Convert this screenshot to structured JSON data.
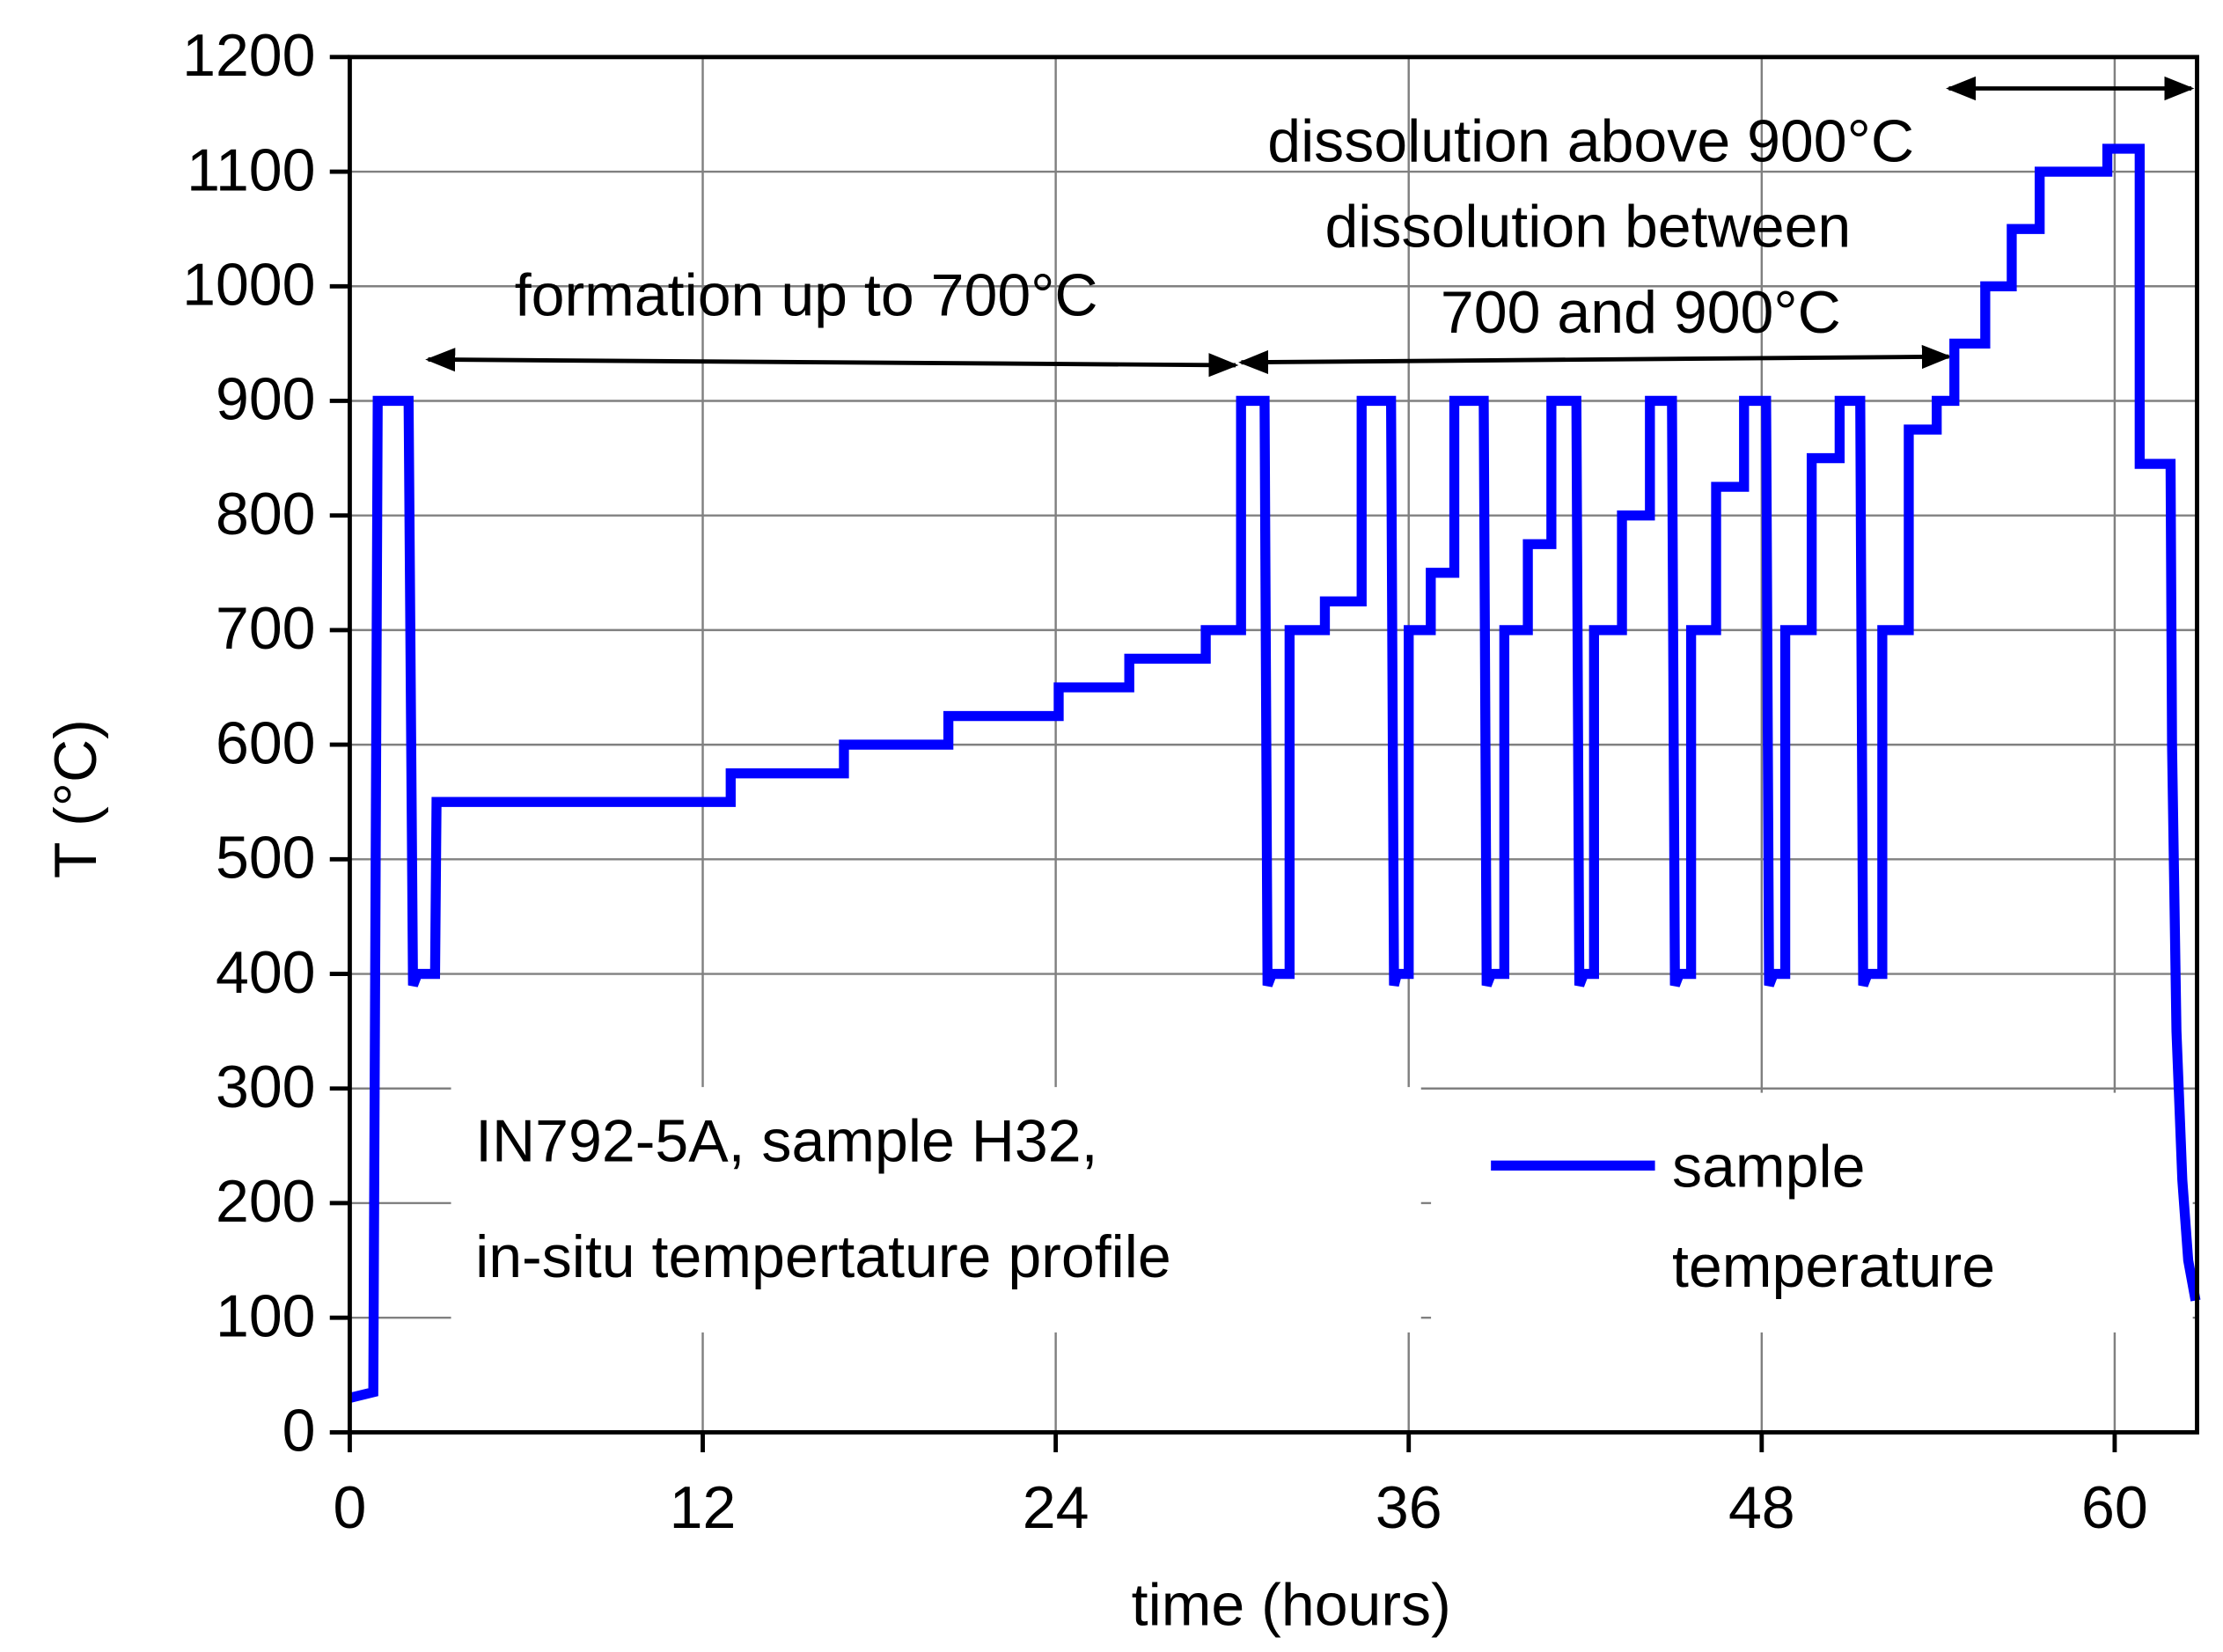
{
  "chart_data": {
    "type": "line",
    "xlabel": "time (hours)",
    "ylabel": "T (°C)",
    "xlim": [
      0,
      62.8
    ],
    "ylim": [
      0,
      1200
    ],
    "xticks": [
      0,
      12,
      24,
      36,
      48,
      60
    ],
    "yticks": [
      0,
      100,
      200,
      300,
      400,
      500,
      600,
      700,
      800,
      900,
      1000,
      1100,
      1200
    ],
    "grid": true,
    "annotations": [
      "formation up to 700°C",
      "dissolution above 900°C",
      "dissolution between",
      "700 and 900°C",
      "IN792-5A, sample H32,",
      "in-situ tempertature profile"
    ],
    "legend": "lower right",
    "series": [
      {
        "name": "sample temperature",
        "color": "#0000ff",
        "x": [
          0,
          0.8,
          0.95,
          2.0,
          2.15,
          2.3,
          2.9,
          2.95,
          12.95,
          12.95,
          16.8,
          16.8,
          20.35,
          20.35,
          24.1,
          24.1,
          26.5,
          26.5,
          29.1,
          29.1,
          30.3,
          30.3,
          31.1,
          31.2,
          31.35,
          31.95,
          31.95,
          33.15,
          33.15,
          34.4,
          34.4,
          35.4,
          35.5,
          35.6,
          36.0,
          36.0,
          36.75,
          36.75,
          37.55,
          37.55,
          38.55,
          38.65,
          38.8,
          39.25,
          39.25,
          40.05,
          40.05,
          40.85,
          40.85,
          41.7,
          41.8,
          41.95,
          42.3,
          42.3,
          43.25,
          43.25,
          44.2,
          44.2,
          44.95,
          45.05,
          45.2,
          45.6,
          45.6,
          46.45,
          46.45,
          47.4,
          47.4,
          48.15,
          48.25,
          48.4,
          48.8,
          48.8,
          49.7,
          49.7,
          50.65,
          50.65,
          51.35,
          51.45,
          51.6,
          52.1,
          52.1,
          53.0,
          53.0,
          53.95,
          53.95,
          54.55,
          54.55,
          55.6,
          55.6,
          56.5,
          56.5,
          57.45,
          57.45,
          59.75,
          59.75,
          60.85,
          60.85,
          61.9,
          61.95,
          62.1,
          62.3,
          62.5,
          62.75
        ],
        "values": [
          30,
          35,
          900,
          900,
          390,
          400,
          400,
          550,
          550,
          575,
          575,
          600,
          600,
          625,
          625,
          650,
          650,
          675,
          675,
          700,
          700,
          900,
          900,
          390,
          400,
          400,
          700,
          700,
          725,
          725,
          900,
          900,
          390,
          400,
          400,
          700,
          700,
          750,
          750,
          900,
          900,
          390,
          400,
          400,
          700,
          700,
          775,
          775,
          900,
          900,
          390,
          400,
          400,
          700,
          700,
          800,
          800,
          900,
          900,
          390,
          400,
          400,
          700,
          700,
          825,
          825,
          900,
          900,
          390,
          400,
          400,
          700,
          700,
          850,
          850,
          900,
          900,
          390,
          400,
          400,
          700,
          700,
          875,
          875,
          900,
          900,
          950,
          950,
          1000,
          1000,
          1050,
          1050,
          1100,
          1100,
          1120,
          1120,
          845,
          845,
          600,
          350,
          220,
          150,
          115
        ]
      }
    ]
  }
}
